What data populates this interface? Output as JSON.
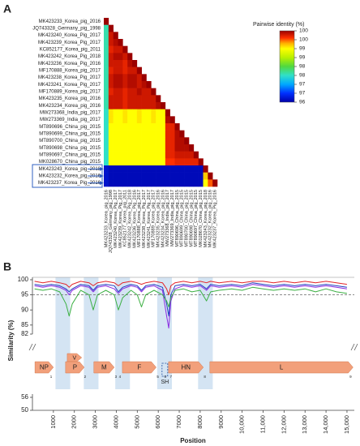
{
  "chart_data": [
    {
      "type": "heatmap",
      "panel": "A",
      "legend_title": "Pairwise identity (%)",
      "labels": [
        "MK423233_Korea_pig_2016",
        "JQ743328_Germany_pig_1998",
        "MK423240_Korea_Pig_2017",
        "MK423239_Korea_Pig_2017",
        "KC852177_Korea_pig_2011",
        "MK423242_Korea_Pig_2018",
        "MK423236_Korea_Pig_2016",
        "MF170888_Korea_pig_2017",
        "MK423238_Korea_Pig_2017",
        "MK423241_Korea_Pig_2017",
        "MF170889_Korea_pig_2017",
        "MK423235_Korea_pig_2016",
        "MK423234_Korea_pig_2016",
        "MW273368_India_pig_2017",
        "MW273369_India_pig_2017",
        "MT890696_China_pig_2015",
        "MT890699_China_pig_2015",
        "MT890700_China_pig_2015",
        "MT890698_China_pig_2015",
        "MT890697_China_pig_2015",
        "MK028670_China_pig_2015",
        "MK423243_Korea_pig_2018",
        "MK423232_Korea_pig_2016",
        "MK423237_Korea_Pig_2016"
      ],
      "values": [
        [
          100
        ],
        [
          97.6,
          100
        ],
        [
          97.6,
          99.8,
          100
        ],
        [
          97.6,
          99.8,
          99.9,
          100
        ],
        [
          97.6,
          99.7,
          99.8,
          99.8,
          100
        ],
        [
          97.6,
          99.8,
          99.9,
          99.9,
          99.8,
          100
        ],
        [
          97.6,
          99.8,
          99.8,
          99.8,
          99.7,
          99.9,
          100
        ],
        [
          97.6,
          99.7,
          99.8,
          99.8,
          99.7,
          99.8,
          99.8,
          100
        ],
        [
          97.6,
          99.8,
          99.9,
          99.9,
          99.8,
          99.9,
          99.9,
          99.8,
          100
        ],
        [
          97.6,
          99.8,
          99.9,
          99.9,
          99.8,
          99.9,
          99.9,
          99.8,
          99.9,
          100
        ],
        [
          97.6,
          99.7,
          99.8,
          99.8,
          99.7,
          99.8,
          99.8,
          99.9,
          99.8,
          99.8,
          100
        ],
        [
          97.6,
          99.8,
          99.8,
          99.8,
          99.7,
          99.8,
          99.8,
          99.8,
          99.8,
          99.8,
          99.8,
          100
        ],
        [
          97.6,
          99.8,
          99.8,
          99.8,
          99.7,
          99.8,
          99.8,
          99.8,
          99.8,
          99.8,
          99.8,
          99.9,
          100
        ],
        [
          97.5,
          99.1,
          99,
          99,
          99.1,
          99,
          99,
          99.1,
          99,
          99,
          99.1,
          99,
          99,
          100
        ],
        [
          97.5,
          99.1,
          99,
          99,
          99.1,
          99,
          99,
          99.1,
          99,
          99,
          99.1,
          99,
          99,
          99.9,
          100
        ],
        [
          97.5,
          99,
          99,
          99,
          99,
          99,
          99,
          99,
          99,
          99,
          99,
          99,
          99,
          99.7,
          99.7,
          100
        ],
        [
          97.5,
          99,
          99,
          99,
          99,
          99,
          99,
          99,
          99,
          99,
          99,
          99,
          99,
          99.7,
          99.7,
          99.9,
          100
        ],
        [
          97.5,
          99,
          99,
          99,
          99,
          99,
          99,
          99,
          99,
          99,
          99,
          99,
          99,
          99.7,
          99.7,
          99.9,
          99.9,
          100
        ],
        [
          97.5,
          99,
          99,
          99,
          99,
          99,
          99,
          99,
          99,
          99,
          99,
          99,
          99,
          99.7,
          99.7,
          99.9,
          99.9,
          99.9,
          100
        ],
        [
          97.5,
          99,
          99,
          99,
          99,
          99,
          99,
          99,
          99,
          99,
          99,
          99,
          99,
          99.7,
          99.7,
          99.8,
          99.8,
          99.8,
          99.8,
          100
        ],
        [
          97.5,
          99,
          99,
          99,
          99,
          99,
          99,
          99,
          99,
          99,
          99,
          99,
          99,
          99.6,
          99.6,
          99.7,
          99.7,
          99.7,
          99.7,
          99.7,
          100
        ],
        [
          96.2,
          96.1,
          96.1,
          96.1,
          96.1,
          96.1,
          96.1,
          96.1,
          96.1,
          96.1,
          96.1,
          96.1,
          96.1,
          96.1,
          96.1,
          96.1,
          96.1,
          96.1,
          96.1,
          96.1,
          96.1,
          100
        ],
        [
          96.2,
          96.1,
          96.1,
          96.1,
          96.1,
          96.1,
          96.1,
          96.1,
          96.1,
          96.1,
          96.1,
          96.1,
          96.1,
          96.1,
          96.1,
          96.1,
          96.1,
          96.1,
          96.1,
          96.1,
          96.1,
          99.2,
          100
        ],
        [
          96.2,
          96.1,
          96.1,
          96.1,
          96.1,
          96.1,
          96.1,
          96.1,
          96.1,
          96.1,
          96.1,
          96.1,
          96.1,
          96.1,
          96.1,
          96.1,
          96.1,
          96.1,
          96.1,
          96.1,
          96.1,
          99,
          99.5,
          100
        ]
      ],
      "colorscale": [
        {
          "value": 96,
          "color": "#0000a8"
        },
        {
          "value": 96.5,
          "color": "#0030ff"
        },
        {
          "value": 97,
          "color": "#00a8ff"
        },
        {
          "value": 97.5,
          "color": "#30e0c8"
        },
        {
          "value": 98,
          "color": "#50d840"
        },
        {
          "value": 98.5,
          "color": "#b8f000"
        },
        {
          "value": 99,
          "color": "#ffff00"
        },
        {
          "value": 99.3,
          "color": "#ffb000"
        },
        {
          "value": 99.6,
          "color": "#ff3000"
        },
        {
          "value": 100,
          "color": "#9a0000"
        }
      ],
      "colorbar_ticks": [
        {
          "value": 100,
          "label": "100"
        },
        {
          "value": 99.5,
          "label": "100"
        },
        {
          "value": 99,
          "label": "99"
        },
        {
          "value": 98.5,
          "label": "99"
        },
        {
          "value": 98,
          "label": "98"
        },
        {
          "value": 97.5,
          "label": "98"
        },
        {
          "value": 97,
          "label": "97"
        },
        {
          "value": 96.5,
          "label": "97"
        },
        {
          "value": 96,
          "label": "96"
        }
      ]
    },
    {
      "type": "line",
      "panel": "B",
      "ylabel": "Similarity (%)",
      "xlabel": "Position",
      "x": [
        100,
        500,
        900,
        1300,
        1600,
        1750,
        1900,
        2300,
        2700,
        2900,
        3100,
        3500,
        3900,
        4100,
        4300,
        4700,
        5000,
        5200,
        5400,
        5800,
        6200,
        6400,
        6500,
        6600,
        6800,
        7200,
        7600,
        8000,
        8300,
        8500,
        8900,
        9500,
        10000,
        10500,
        11000,
        11500,
        12000,
        12500,
        13000,
        13500,
        14000,
        14500,
        15000
      ],
      "series": [
        {
          "color": "#e3262b",
          "values": [
            99.5,
            99,
            99.5,
            99,
            98.5,
            97.5,
            98.5,
            99.5,
            99,
            98,
            99,
            99.5,
            99,
            98,
            99,
            99.5,
            99,
            98.5,
            99,
            99.5,
            99,
            97,
            95,
            98,
            99,
            99.5,
            99,
            99.5,
            99,
            99.5,
            99,
            99.5,
            99,
            99.5,
            99.5,
            99,
            99.5,
            99,
            99.5,
            99,
            99.5,
            99,
            98.5
          ]
        },
        {
          "color": "#2040c0",
          "values": [
            98.5,
            98,
            98.5,
            98,
            97,
            96,
            97,
            98.5,
            98,
            96.5,
            98,
            98.5,
            98,
            96,
            97.5,
            98.5,
            98,
            96.5,
            98,
            98.5,
            97.5,
            92,
            88,
            95,
            98,
            98.5,
            98,
            98.5,
            97,
            98.5,
            98,
            98.5,
            98,
            99,
            98.5,
            98,
            98.5,
            98,
            98.5,
            98,
            98.5,
            98,
            97.5
          ]
        },
        {
          "color": "#8a2be2",
          "values": [
            98,
            97.5,
            98,
            97.5,
            96.5,
            95,
            96.5,
            98,
            97.5,
            96,
            97.5,
            98,
            97,
            95.5,
            97,
            98,
            97.5,
            96,
            97.5,
            98,
            96.5,
            88,
            84,
            93,
            97,
            98,
            97.5,
            98,
            96.5,
            98,
            97.5,
            98,
            97.5,
            98.5,
            98,
            97.5,
            98,
            97.5,
            98,
            97.5,
            98,
            97.5,
            97
          ]
        },
        {
          "color": "#3cb043",
          "values": [
            97,
            96.5,
            97,
            96,
            92,
            88,
            92,
            96.5,
            95,
            90,
            95,
            96.5,
            95,
            90,
            94,
            96.5,
            95,
            91,
            95,
            96.5,
            95,
            93,
            91,
            94,
            96.5,
            97,
            96,
            96.5,
            93,
            96,
            96.5,
            97,
            96.5,
            97.5,
            97,
            96.5,
            97,
            96.5,
            97,
            96,
            97,
            96,
            95.5
          ]
        }
      ],
      "reference_line": 95,
      "xlim": [
        0,
        15350
      ],
      "xticks": [
        1000,
        2000,
        3000,
        4000,
        5000,
        6000,
        7000,
        8000,
        9000,
        {
          "value": 10000,
          "label": "10,000"
        },
        {
          "value": 11000,
          "label": "11,000"
        },
        {
          "value": 12000,
          "label": "12,000"
        },
        {
          "value": 13000,
          "label": "13,000"
        },
        {
          "value": 14000,
          "label": "14,000"
        },
        {
          "value": 15000,
          "label": "15,000"
        }
      ],
      "ylim": [
        82,
        100
      ],
      "yticks": [
        82,
        85,
        90,
        95,
        100
      ],
      "lower_ylim": [
        50,
        56
      ],
      "lower_yticks": [
        50,
        56
      ],
      "highlight_regions": [
        [
          1100,
          1800
        ],
        [
          2450,
          3150
        ],
        [
          3950,
          4650
        ],
        [
          5950,
          6650
        ],
        [
          7900,
          8600
        ]
      ],
      "highlight_color": "#c6dbef",
      "gene_color": "#f2a07b",
      "genes": [
        {
          "name": "NP",
          "start": 120,
          "end": 1000
        },
        {
          "name": "V",
          "start": 1660,
          "end": 2350,
          "lane": "above"
        },
        {
          "name": "P",
          "start": 1580,
          "end": 2470
        },
        {
          "name": "M",
          "start": 2930,
          "end": 3900
        },
        {
          "name": "F",
          "start": 4290,
          "end": 5900
        },
        {
          "name": "SH",
          "start": 6180,
          "end": 6450,
          "lane": "below"
        },
        {
          "name": "HN",
          "start": 6490,
          "end": 8150
        },
        {
          "name": "L",
          "start": 8460,
          "end": 15290
        }
      ],
      "junction_labels": [
        {
          "label": "1",
          "x": 890
        },
        {
          "label": "2",
          "x": 2510
        },
        {
          "label": "3",
          "x": 3980
        },
        {
          "label": "4",
          "x": 4170
        },
        {
          "label": "5",
          "x": 5980
        },
        {
          "label": "6",
          "x": 6330
        },
        {
          "label": "7",
          "x": 6600
        },
        {
          "label": "8",
          "x": 8220
        },
        {
          "label": "9",
          "x": 15170
        }
      ]
    }
  ]
}
